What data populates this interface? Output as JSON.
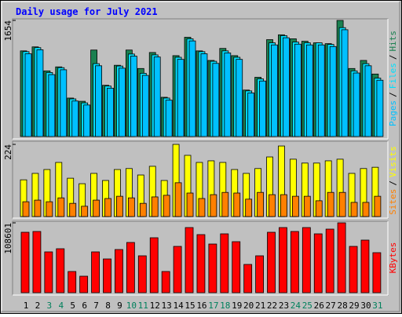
{
  "chart_data": [
    {
      "type": "bar",
      "title": "Daily usage for July 2021",
      "categories": [
        "1",
        "2",
        "3",
        "4",
        "5",
        "6",
        "7",
        "8",
        "9",
        "10",
        "11",
        "12",
        "13",
        "14",
        "15",
        "16",
        "17",
        "18",
        "19",
        "20",
        "21",
        "22",
        "23",
        "24",
        "25",
        "26",
        "27",
        "28",
        "29",
        "30",
        "31"
      ],
      "label_colors": [
        "#000000",
        "#000000",
        "#00805c",
        "#00805c",
        "#000000",
        "#000000",
        "#000000",
        "#000000",
        "#000000",
        "#00805c",
        "#00805c",
        "#000000",
        "#000000",
        "#000000",
        "#000000",
        "#000000",
        "#00805c",
        "#00805c",
        "#000000",
        "#000000",
        "#000000",
        "#000000",
        "#000000",
        "#00805c",
        "#00805c",
        "#000000",
        "#000000",
        "#000000",
        "#000000",
        "#000000",
        "#00805c"
      ],
      "legend_separator": "/",
      "series": [
        {
          "name": "Pages",
          "color": "#00c0ff",
          "values": [
            1179,
            1236,
            882,
            951,
            506,
            449,
            1008,
            689,
            974,
            1145,
            871,
            1133,
            518,
            1099,
            1362,
            1179,
            1042,
            1190,
            1099,
            620,
            791,
            1305,
            1407,
            1316,
            1305,
            1305,
            1282,
            1521,
            905,
            1008,
            802
          ]
        },
        {
          "name": "Files",
          "color": "#00e0ff",
          "values": [
            1209,
            1266,
            912,
            981,
            536,
            479,
            1038,
            719,
            1004,
            1175,
            901,
            1163,
            548,
            1129,
            1392,
            1209,
            1072,
            1220,
            1129,
            650,
            821,
            1335,
            1437,
            1346,
            1335,
            1335,
            1312,
            1551,
            935,
            1038,
            832
          ]
        },
        {
          "name": "Hits",
          "color": "#1a8050",
          "values": [
            1220,
            1277,
            935,
            992,
            548,
            502,
            1232,
            730,
            1015,
            1232,
            969,
            1197,
            559,
            1152,
            1414,
            1220,
            1084,
            1255,
            1152,
            662,
            844,
            1380,
            1449,
            1392,
            1357,
            1335,
            1323,
            1654,
            969,
            1084,
            890
          ]
        }
      ],
      "ylim": [
        0,
        1654
      ],
      "yticks": [
        1654
      ]
    },
    {
      "type": "bar",
      "legend_separator": "/",
      "series": [
        {
          "name": "Sites",
          "color": "#ff8000",
          "values": [
            46,
            51,
            46,
            58,
            41,
            32,
            51,
            56,
            63,
            58,
            41,
            61,
            66,
            105,
            73,
            56,
            68,
            75,
            73,
            54,
            75,
            68,
            68,
            63,
            63,
            49,
            75,
            75,
            44,
            44,
            63
          ]
        },
        {
          "name": "Visits",
          "color": "#ffff00",
          "values": [
            114,
            134,
            146,
            168,
            119,
            102,
            134,
            112,
            146,
            149,
            129,
            156,
            112,
            224,
            190,
            168,
            173,
            168,
            146,
            134,
            149,
            185,
            219,
            178,
            166,
            166,
            173,
            178,
            134,
            149,
            153
          ]
        }
      ],
      "ylim": [
        0,
        224
      ],
      "yticks": [
        224
      ]
    },
    {
      "type": "bar",
      "series": [
        {
          "name": "KBytes",
          "color": "#ff0000",
          "values": [
            93958,
            95177,
            63452,
            68333,
            32946,
            25625,
            63452,
            52470,
            67113,
            78095,
            57351,
            85417,
            32946,
            71993,
            101280,
            90297,
            75654,
            91517,
            79316,
            43929,
            57351,
            93958,
            101280,
            95177,
            101280,
            91517,
            98839,
            108601,
            71993,
            81757,
            62232
          ]
        }
      ],
      "ylim": [
        0,
        108601
      ],
      "yticks": [
        108601
      ]
    }
  ]
}
